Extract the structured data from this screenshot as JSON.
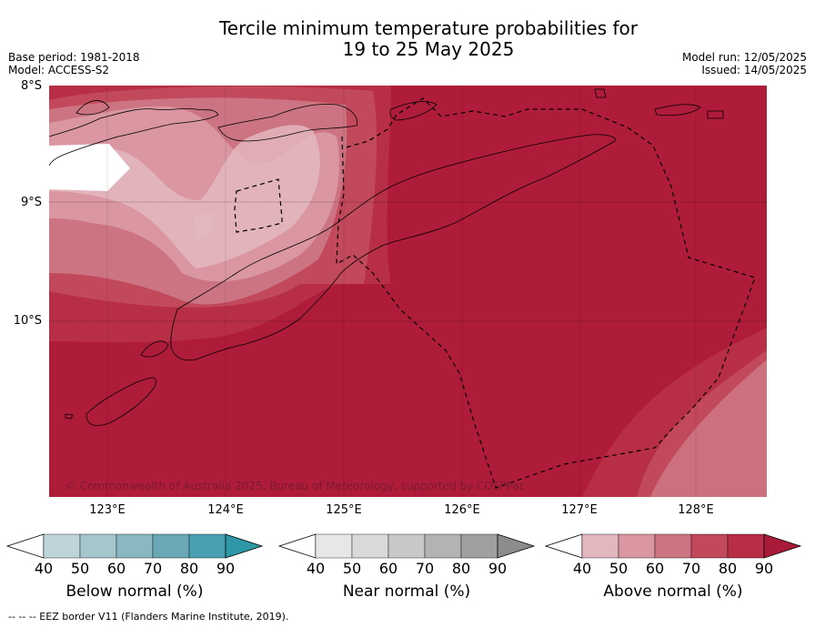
{
  "title_line1": "Tercile minimum temperature probabilities for",
  "title_line2": "19 to 25 May 2025",
  "meta_left": {
    "base_period": "Base period: 1981-2018",
    "model": "Model: ACCESS-S2"
  },
  "meta_right": {
    "model_run": "Model run: 12/05/2025",
    "issued": "Issued: 14/05/2025"
  },
  "lat_labels": [
    "8°S",
    "9°S",
    "10°S"
  ],
  "lon_labels": [
    "123°E",
    "124°E",
    "125°E",
    "126°E",
    "127°E",
    "128°E"
  ],
  "copyright": "© Commonwealth of Australia 2025, Bureau of Meteorology, supported by COSPPac",
  "colorbars": [
    {
      "label": "Below normal (%)",
      "ticks": [
        "40",
        "50",
        "60",
        "70",
        "80",
        "90"
      ],
      "colors": [
        "#bfd4da",
        "#a5c6cc",
        "#8ab8c2",
        "#6aa8b6",
        "#48a0b0"
      ],
      "extend_color": "#2e97a8"
    },
    {
      "label": "Near normal (%)",
      "ticks": [
        "40",
        "50",
        "60",
        "70",
        "80",
        "90"
      ],
      "colors": [
        "#e7e7e7",
        "#d9d9d9",
        "#c8c8c8",
        "#b3b3b3",
        "#a0a0a0"
      ],
      "extend_color": "#8c8c8c"
    },
    {
      "label": "Above normal (%)",
      "ticks": [
        "40",
        "50",
        "60",
        "70",
        "80",
        "90"
      ],
      "colors": [
        "#e3b7be",
        "#da97a1",
        "#cd7482",
        "#c2485c",
        "#b82e47"
      ],
      "extend_color": "#a81a38"
    }
  ],
  "footer": "--  --  -- EEZ border V11 (Flanders Marine Institute, 2019).",
  "shading_colors": {
    "white": "#ffffff",
    "p40": "#e3b7be",
    "p50": "#da97a1",
    "p60": "#cd7482",
    "p70": "#c2485c",
    "p80": "#b82e47",
    "p90": "#af1c39"
  }
}
